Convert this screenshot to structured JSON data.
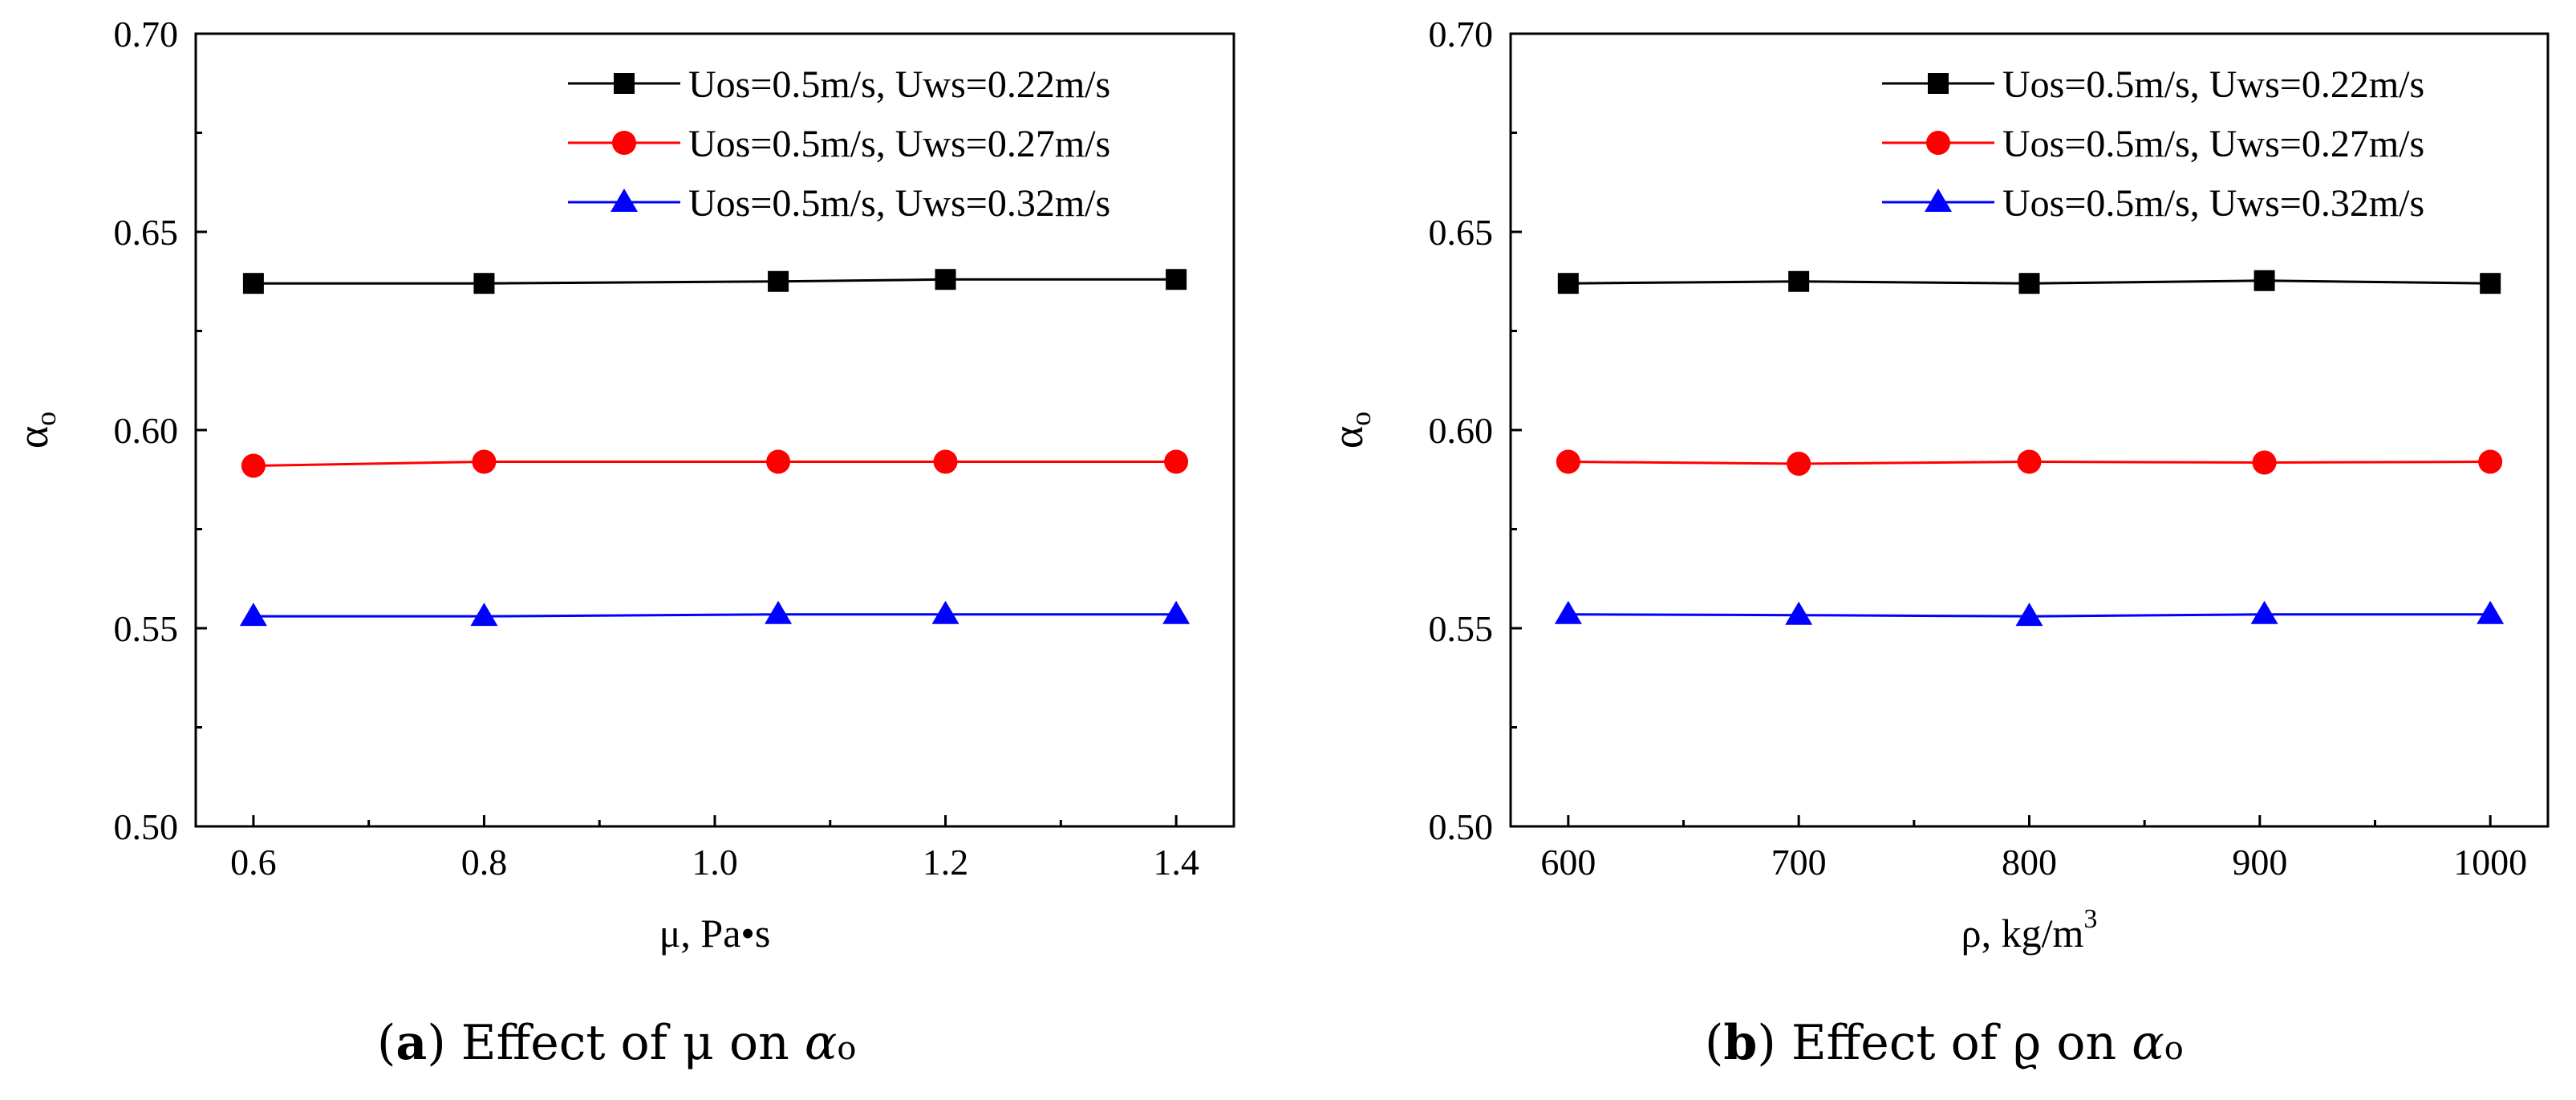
{
  "figure": {
    "panels": [
      {
        "caption": {
          "label": "a",
          "text": " Effect of μ on ",
          "symbol": "α",
          "subscript": "o"
        }
      },
      {
        "caption": {
          "label": "b",
          "text": " Effect of ϱ on ",
          "symbol": "α",
          "subscript": "o"
        }
      }
    ]
  },
  "chart_data": [
    {
      "type": "line",
      "title": "",
      "xlabel": "μ, Pa•s",
      "ylabel": {
        "symbol": "α",
        "subscript": "o"
      },
      "xlim": [
        0.55,
        1.45
      ],
      "ylim": [
        0.5,
        0.7
      ],
      "xticks": [
        0.6,
        0.8,
        1.0,
        1.2,
        1.4
      ],
      "xtick_labels": [
        "0.6",
        "0.8",
        "1.0",
        "1.2",
        "1.4"
      ],
      "yticks": [
        0.5,
        0.55,
        0.6,
        0.65,
        0.7
      ],
      "ytick_labels": [
        "0.50",
        "0.55",
        "0.60",
        "0.65",
        "0.70"
      ],
      "legend_position": "top-right",
      "grid": false,
      "series": [
        {
          "name": "Uos=0.5m/s, Uws=0.22m/s",
          "color": "#000000",
          "marker": "square",
          "x": [
            0.6,
            0.8,
            1.055,
            1.2,
            1.4
          ],
          "y": [
            0.637,
            0.637,
            0.6375,
            0.638,
            0.638
          ]
        },
        {
          "name": "Uos=0.5m/s, Uws=0.27m/s",
          "color": "#ff0000",
          "marker": "circle",
          "x": [
            0.6,
            0.8,
            1.055,
            1.2,
            1.4
          ],
          "y": [
            0.591,
            0.592,
            0.592,
            0.592,
            0.592
          ]
        },
        {
          "name": "Uos=0.5m/s, Uws=0.32m/s",
          "color": "#0000ff",
          "marker": "triangle",
          "x": [
            0.6,
            0.8,
            1.055,
            1.2,
            1.4
          ],
          "y": [
            0.553,
            0.553,
            0.5535,
            0.5535,
            0.5535
          ]
        }
      ]
    },
    {
      "type": "line",
      "title": "",
      "xlabel": "ρ, kg/m",
      "xlabel_superscript": "3",
      "ylabel": {
        "symbol": "α",
        "subscript": "o"
      },
      "xlim": [
        575,
        1025
      ],
      "ylim": [
        0.5,
        0.7
      ],
      "xticks": [
        600,
        700,
        800,
        900,
        1000
      ],
      "xtick_labels": [
        "600",
        "700",
        "800",
        "900",
        "1000"
      ],
      "yticks": [
        0.5,
        0.55,
        0.6,
        0.65,
        0.7
      ],
      "ytick_labels": [
        "0.50",
        "0.55",
        "0.60",
        "0.65",
        "0.70"
      ],
      "legend_position": "top-right",
      "grid": false,
      "series": [
        {
          "name": "Uos=0.5m/s, Uws=0.22m/s",
          "color": "#000000",
          "marker": "square",
          "x": [
            600,
            700,
            800,
            902,
            1000
          ],
          "y": [
            0.637,
            0.6375,
            0.637,
            0.6377,
            0.637
          ]
        },
        {
          "name": "Uos=0.5m/s, Uws=0.27m/s",
          "color": "#ff0000",
          "marker": "circle",
          "x": [
            600,
            700,
            800,
            902,
            1000
          ],
          "y": [
            0.592,
            0.5915,
            0.592,
            0.5918,
            0.592
          ]
        },
        {
          "name": "Uos=0.5m/s, Uws=0.32m/s",
          "color": "#0000ff",
          "marker": "triangle",
          "x": [
            600,
            700,
            800,
            902,
            1000
          ],
          "y": [
            0.5535,
            0.5533,
            0.553,
            0.5535,
            0.5535
          ]
        }
      ]
    }
  ]
}
